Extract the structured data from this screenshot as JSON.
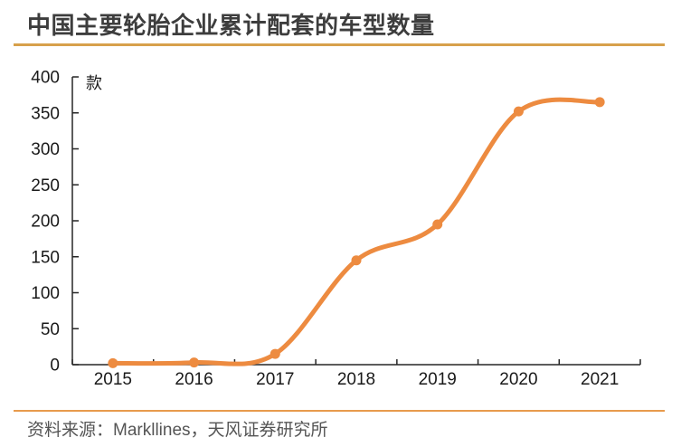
{
  "header": {
    "title": "中国主要轮胎企业累计配套的车型数量"
  },
  "footer": {
    "source": "资料来源：Markllines，天风证券研究所"
  },
  "colors": {
    "line": "#ed8b40",
    "marker": "#ed8b40",
    "title_underline": "#d7a04b",
    "footer_divider": "#e89b4d",
    "axis": "#262626",
    "tick_text": "#1a1a1a",
    "title_text": "#3d3d3d",
    "footer_text": "#555555"
  },
  "chart_data": {
    "type": "line",
    "title": "中国主要轮胎企业累计配套的车型数量",
    "unit_label": "款",
    "x": [
      "2015",
      "2016",
      "2017",
      "2018",
      "2019",
      "2020",
      "2021"
    ],
    "series": [
      {
        "name": "累计配套的车型数量",
        "values": [
          2,
          3,
          15,
          145,
          195,
          352,
          365
        ]
      }
    ],
    "ylim": [
      0,
      400
    ],
    "ytick_step": 50,
    "yticks": [
      0,
      50,
      100,
      150,
      200,
      250,
      300,
      350,
      400
    ],
    "grid": false,
    "legend": false,
    "smooth": true,
    "marker": "circle"
  }
}
